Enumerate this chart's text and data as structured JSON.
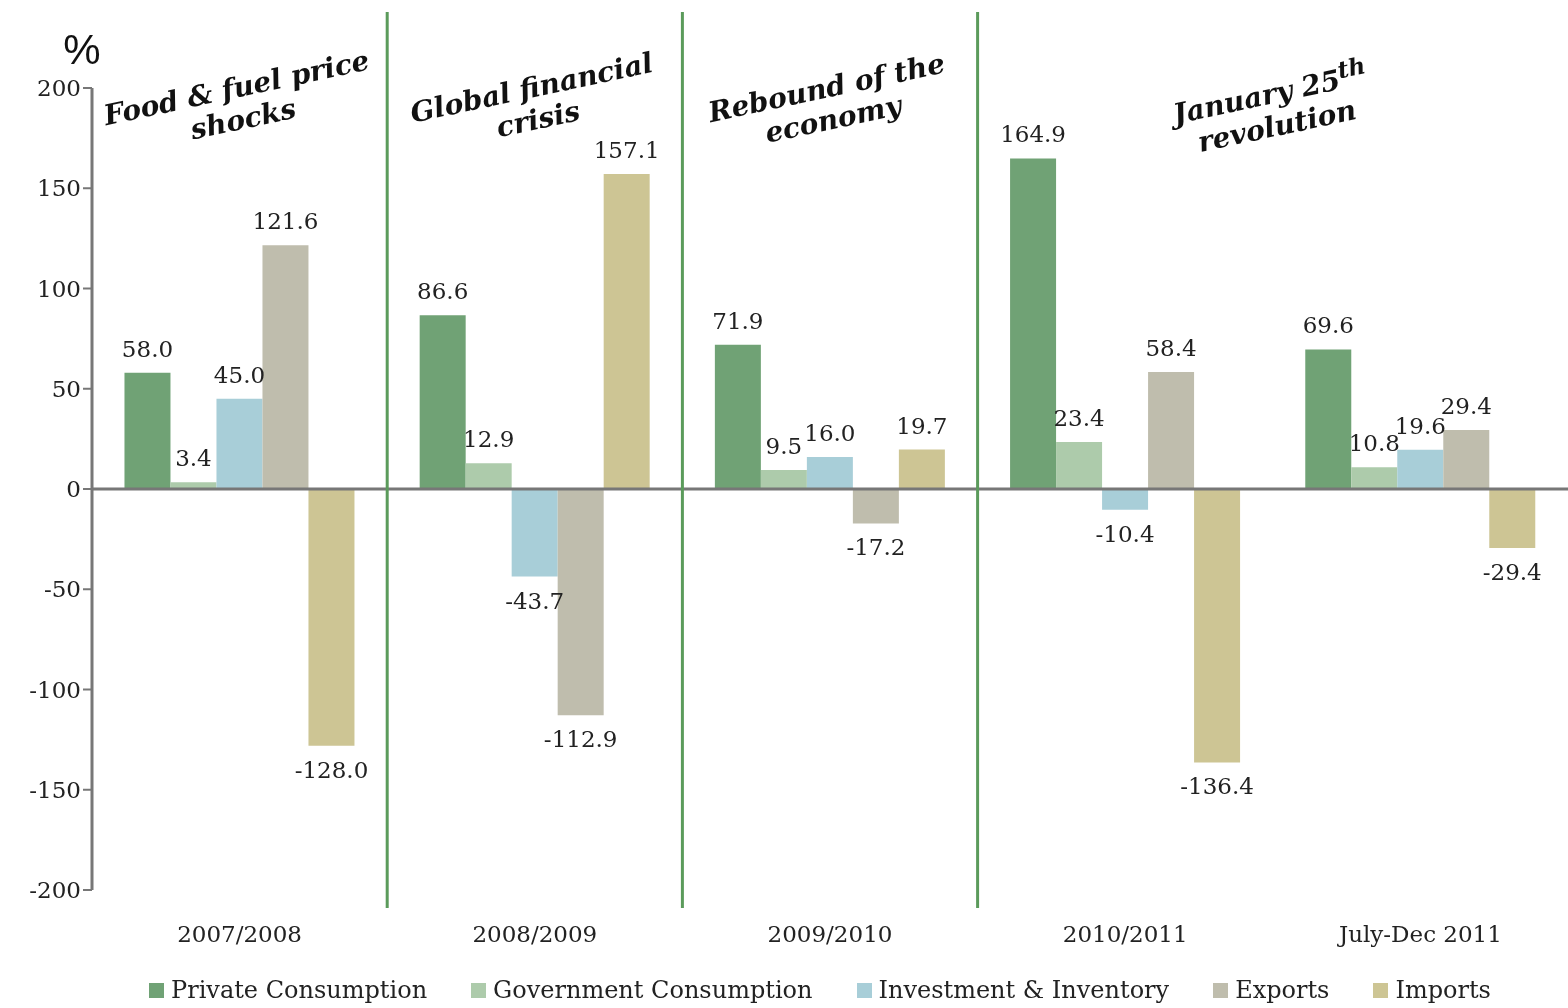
{
  "chart_data": {
    "type": "bar",
    "ylabel": "%",
    "categories": [
      "2007/2008",
      "2008/2009",
      "2009/2010",
      "2010/2011",
      "July-Dec 2011"
    ],
    "series": [
      {
        "name": "Private Consumption",
        "color": "#70a275",
        "values": [
          58.0,
          86.6,
          71.9,
          164.9,
          69.6
        ],
        "value_labels": [
          "58.0",
          "86.6",
          "71.9",
          "164.9",
          "69.6"
        ]
      },
      {
        "name": "Government Consumption",
        "color": "#adcbab",
        "values": [
          3.4,
          12.9,
          9.5,
          23.4,
          10.8
        ],
        "value_labels": [
          "3.4",
          "12.9",
          "9.5",
          "23.4",
          "10.8"
        ]
      },
      {
        "name": "Investment & Inventory",
        "color": "#a8ced8",
        "values": [
          45.0,
          -43.7,
          16.0,
          -10.4,
          19.6
        ],
        "value_labels": [
          "45.0",
          "-43.7",
          "16.0",
          "-10.4",
          "19.6"
        ]
      },
      {
        "name": "Exports",
        "color": "#bfbdad",
        "values": [
          121.6,
          -112.9,
          -17.2,
          58.4,
          29.4
        ],
        "value_labels": [
          "121.6",
          "-112.9",
          "-17.2",
          "58.4",
          "29.4"
        ]
      },
      {
        "name": "Imports",
        "color": "#cdc594",
        "values": [
          -128.0,
          157.1,
          19.7,
          -136.4,
          -29.4
        ],
        "value_labels": [
          "-128.0",
          "157.1",
          "19.7",
          "-136.4",
          "-29.4"
        ]
      }
    ],
    "ylim": [
      -200,
      200
    ],
    "yticks": [
      -200,
      -150,
      -100,
      -50,
      0,
      50,
      100,
      150,
      200
    ],
    "annotations": [
      "Food & fuel price shocks",
      "Global financial crisis",
      "Rebound of the economy",
      "January 25$^{th}$ revolution"
    ],
    "legend": "bottom"
  }
}
